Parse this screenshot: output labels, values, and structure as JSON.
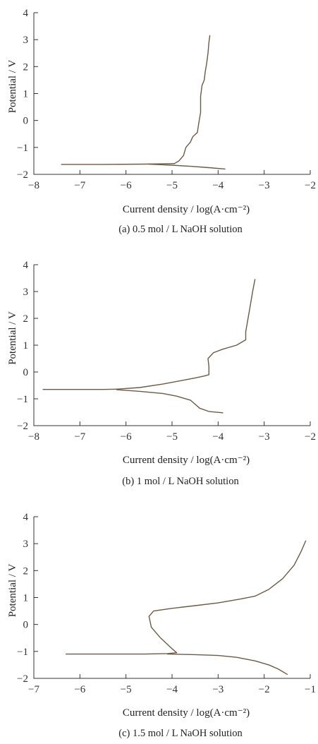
{
  "colors": {
    "curve": "#6b5a48",
    "axis": "#333333"
  },
  "chart_data": [
    {
      "type": "line",
      "caption": "(a) 0.5 mol / L NaOH solution",
      "xlabel": "Current density / log(A·cm⁻²)",
      "ylabel": "Potential / V",
      "xlim": [
        -8,
        -2
      ],
      "ylim": [
        -2,
        4
      ],
      "xticks": [
        "-8",
        "-7",
        "-6",
        "-5",
        "-4",
        "-3",
        "-2"
      ],
      "yticks": [
        "-2",
        "-1",
        "0",
        "1",
        "2",
        "3",
        "4"
      ],
      "grid": false,
      "series": [
        {
          "x": [
            -7.4,
            -6.5,
            -5.6,
            -5.2,
            -4.95
          ],
          "y": [
            -1.63,
            -1.63,
            -1.62,
            -1.61,
            -1.6
          ]
        },
        {
          "x": [
            -4.95,
            -4.85,
            -4.75,
            -4.7,
            -4.6,
            -4.55,
            -4.45,
            -4.42,
            -4.38,
            -4.38,
            -4.35,
            -4.3,
            -4.28,
            -4.25,
            -4.22,
            -4.2,
            -4.18
          ],
          "y": [
            -1.6,
            -1.5,
            -1.3,
            -1.0,
            -0.8,
            -0.6,
            -0.45,
            -0.1,
            0.3,
            0.9,
            1.3,
            1.5,
            1.8,
            2.1,
            2.5,
            2.9,
            3.15
          ]
        },
        {
          "x": [
            -5.5,
            -5.0,
            -4.6,
            -4.2,
            -3.85
          ],
          "y": [
            -1.62,
            -1.66,
            -1.7,
            -1.75,
            -1.8
          ]
        }
      ]
    },
    {
      "type": "line",
      "caption": "(b) 1 mol / L NaOH solution",
      "xlabel": "Current density / log(A·cm⁻²)",
      "ylabel": "Potential / V",
      "xlim": [
        -8,
        -2
      ],
      "ylim": [
        -2,
        4
      ],
      "xticks": [
        "-8",
        "-7",
        "-6",
        "-5",
        "-4",
        "-3",
        "-2"
      ],
      "yticks": [
        "-2",
        "-1",
        "0",
        "1",
        "2",
        "3",
        "4"
      ],
      "grid": false,
      "series": [
        {
          "x": [
            -7.8,
            -7.0,
            -6.5,
            -6.2
          ],
          "y": [
            -0.65,
            -0.65,
            -0.65,
            -0.64
          ]
        },
        {
          "x": [
            -6.2,
            -5.7,
            -5.2,
            -4.8,
            -4.5,
            -4.3,
            -4.2,
            -4.2,
            -4.22,
            -4.1,
            -3.9,
            -3.6,
            -3.4,
            -3.4,
            -3.35,
            -3.3,
            -3.25,
            -3.2
          ],
          "y": [
            -0.64,
            -0.58,
            -0.45,
            -0.32,
            -0.22,
            -0.15,
            -0.1,
            0.2,
            0.5,
            0.72,
            0.85,
            1.0,
            1.2,
            1.5,
            2.0,
            2.5,
            3.0,
            3.45
          ]
        },
        {
          "x": [
            -6.2,
            -5.7,
            -5.2,
            -4.9,
            -4.6,
            -4.4,
            -4.2,
            -3.9
          ],
          "y": [
            -0.66,
            -0.72,
            -0.8,
            -0.9,
            -1.05,
            -1.35,
            -1.47,
            -1.52
          ]
        }
      ]
    },
    {
      "type": "line",
      "caption": "(c) 1.5 mol / L NaOH solution",
      "xlabel": "Current density / log(A·cm⁻²)",
      "ylabel": "Potential / V",
      "xlim": [
        -7,
        -1
      ],
      "ylim": [
        -2,
        4
      ],
      "xticks": [
        "-7",
        "-6",
        "-5",
        "-4",
        "-3",
        "-2",
        "-1"
      ],
      "yticks": [
        "-2",
        "-1",
        "0",
        "1",
        "2",
        "3",
        "4"
      ],
      "grid": false,
      "series": [
        {
          "x": [
            -6.3,
            -5.5,
            -4.6,
            -4.1,
            -3.9
          ],
          "y": [
            -1.1,
            -1.1,
            -1.1,
            -1.08,
            -1.05
          ]
        },
        {
          "x": [
            -3.9,
            -4.0,
            -4.25,
            -4.45,
            -4.5,
            -4.4,
            -4.0,
            -3.5,
            -3.0,
            -2.5,
            -2.2,
            -1.9,
            -1.6,
            -1.35,
            -1.2,
            -1.1
          ],
          "y": [
            -1.05,
            -0.9,
            -0.5,
            -0.1,
            0.3,
            0.5,
            0.6,
            0.7,
            0.8,
            0.95,
            1.05,
            1.3,
            1.7,
            2.2,
            2.7,
            3.1
          ]
        },
        {
          "x": [
            -4.1,
            -3.5,
            -3.0,
            -2.6,
            -2.2,
            -1.9,
            -1.7,
            -1.5
          ],
          "y": [
            -1.1,
            -1.12,
            -1.15,
            -1.22,
            -1.35,
            -1.5,
            -1.65,
            -1.85
          ]
        }
      ]
    }
  ]
}
